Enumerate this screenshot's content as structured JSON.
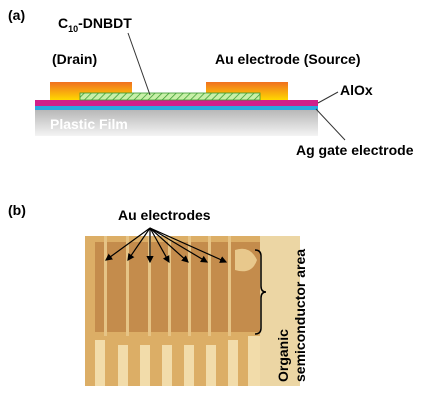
{
  "panel_a": {
    "label": "(a)",
    "semiconductor": {
      "prefix": "C",
      "subscript": "10",
      "suffix": "-DNBDT"
    },
    "drain": "(Drain)",
    "source": "Au electrode (Source)",
    "dielectric": "AlOx",
    "substrate": "Plastic Film",
    "gate": "Ag gate electrode"
  },
  "panel_b": {
    "label": "(b)",
    "electrodes": "Au electrodes",
    "area_line1": "Organic",
    "area_line2": "semiconductor area"
  }
}
